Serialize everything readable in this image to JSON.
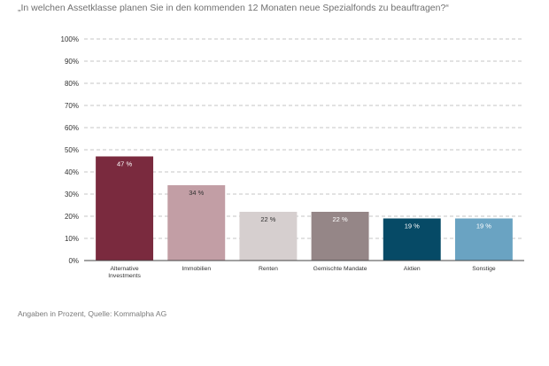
{
  "title": "„In welchen Assetklasse planen Sie in den kommenden 12 Monaten neue Spezialfonds zu beauftragen?“",
  "source": "Angaben in Prozent, Quelle: Kommalpha AG",
  "chart_data": {
    "type": "bar",
    "title": "„In welchen Assetklasse planen Sie in den kommenden 12 Monaten neue Spezialfonds zu beauftragen?“",
    "xlabel": "",
    "ylabel": "",
    "ylim": [
      0,
      100
    ],
    "y_ticks": [
      "0%",
      "10%",
      "20%",
      "30%",
      "40%",
      "50%",
      "60%",
      "70%",
      "80%",
      "90%",
      "100%"
    ],
    "y_tick_values": [
      0,
      10,
      20,
      30,
      40,
      50,
      60,
      70,
      80,
      90,
      100
    ],
    "grid": true,
    "categories": [
      [
        "Alternative",
        "Investments"
      ],
      [
        "Immobilien"
      ],
      [
        "Renten"
      ],
      [
        "Gemischte Mandate"
      ],
      [
        "Aktien"
      ],
      [
        "Sonstige"
      ]
    ],
    "values": [
      47,
      34,
      22,
      22,
      19,
      19
    ],
    "data_labels": [
      "47 %",
      "34 %",
      "22 %",
      "22 %",
      "19 %",
      "19 %"
    ],
    "colors": [
      "#7a2a3e",
      "#c29ea5",
      "#d6cfcf",
      "#958687",
      "#064a66",
      "#6aa3c2"
    ],
    "label_colors": [
      "#ffffff",
      "#333333",
      "#333333",
      "#ffffff",
      "#ffffff",
      "#ffffff"
    ]
  }
}
